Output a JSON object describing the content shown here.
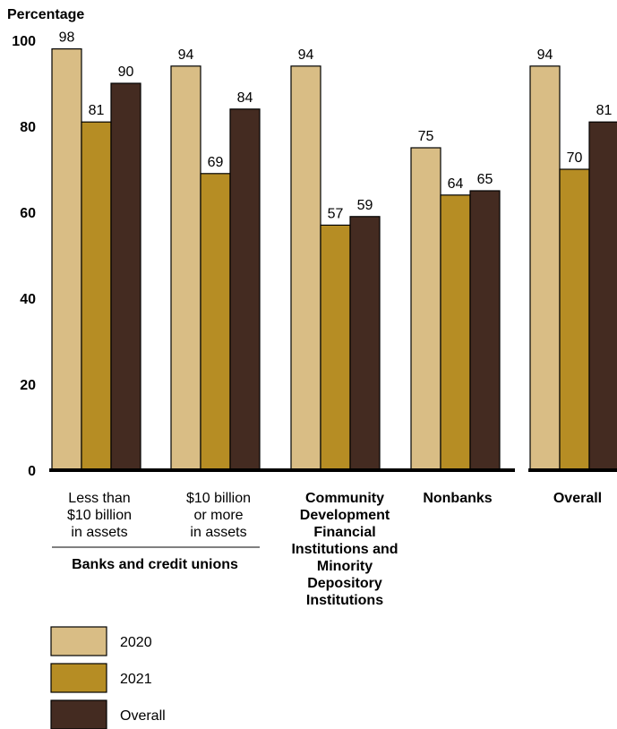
{
  "chart_data": {
    "type": "bar",
    "ylabel": "Percentage",
    "ylim": [
      0,
      100
    ],
    "yticks": [
      "0",
      "20",
      "40",
      "60",
      "80",
      "100"
    ],
    "grid": false,
    "legend_position": "bottom-left",
    "categories": [
      {
        "lines": [
          "Less than",
          "$10 billion",
          "in assets"
        ],
        "bold": false
      },
      {
        "lines": [
          "$10 billion",
          "or more",
          "in assets"
        ],
        "bold": false
      },
      {
        "lines": [
          "Community",
          "Development",
          "Financial",
          "Institutions and",
          "Minority",
          "Depository",
          "Institutions"
        ],
        "bold": true
      },
      {
        "lines": [
          "Nonbanks"
        ],
        "bold": true
      },
      {
        "lines": [
          "Overall"
        ],
        "bold": true
      }
    ],
    "group_label": "Banks and credit unions",
    "series": [
      {
        "name": "2020",
        "color": "#d9bd85",
        "values": [
          98,
          94,
          94,
          75,
          94
        ]
      },
      {
        "name": "2021",
        "color": "#b68d24",
        "values": [
          81,
          69,
          57,
          64,
          70
        ]
      },
      {
        "name": "Overall",
        "color": "#442b21",
        "values": [
          90,
          84,
          59,
          65,
          81
        ]
      }
    ]
  }
}
